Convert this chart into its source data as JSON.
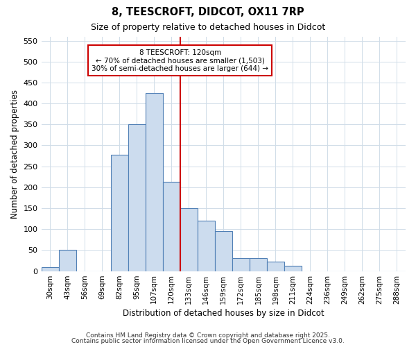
{
  "title1": "8, TEESCROFT, DIDCOT, OX11 7RP",
  "title2": "Size of property relative to detached houses in Didcot",
  "xlabel": "Distribution of detached houses by size in Didcot",
  "ylabel": "Number of detached properties",
  "categories": [
    "30sqm",
    "43sqm",
    "56sqm",
    "69sqm",
    "82sqm",
    "95sqm",
    "107sqm",
    "120sqm",
    "133sqm",
    "146sqm",
    "159sqm",
    "172sqm",
    "185sqm",
    "198sqm",
    "211sqm",
    "224sqm",
    "236sqm",
    "249sqm",
    "262sqm",
    "275sqm",
    "288sqm"
  ],
  "values": [
    10,
    50,
    0,
    0,
    278,
    350,
    425,
    213,
    150,
    120,
    95,
    30,
    30,
    22,
    12,
    0,
    0,
    0,
    0,
    0,
    0
  ],
  "bar_color": "#ccdcee",
  "bar_edge_color": "#4f7fb5",
  "marker_label": "8 TEESCROFT: 120sqm",
  "annotation_line1": "← 70% of detached houses are smaller (1,503)",
  "annotation_line2": "30% of semi-detached houses are larger (644) →",
  "annotation_box_color": "#ffffff",
  "annotation_box_edge_color": "#cc0000",
  "red_line_color": "#cc0000",
  "ylim": [
    0,
    560
  ],
  "yticks": [
    0,
    50,
    100,
    150,
    200,
    250,
    300,
    350,
    400,
    450,
    500,
    550
  ],
  "fig_bg": "#ffffff",
  "ax_bg": "#ffffff",
  "grid_color": "#d0dce8",
  "footer1": "Contains HM Land Registry data © Crown copyright and database right 2025.",
  "footer2": "Contains public sector information licensed under the Open Government Licence v3.0."
}
